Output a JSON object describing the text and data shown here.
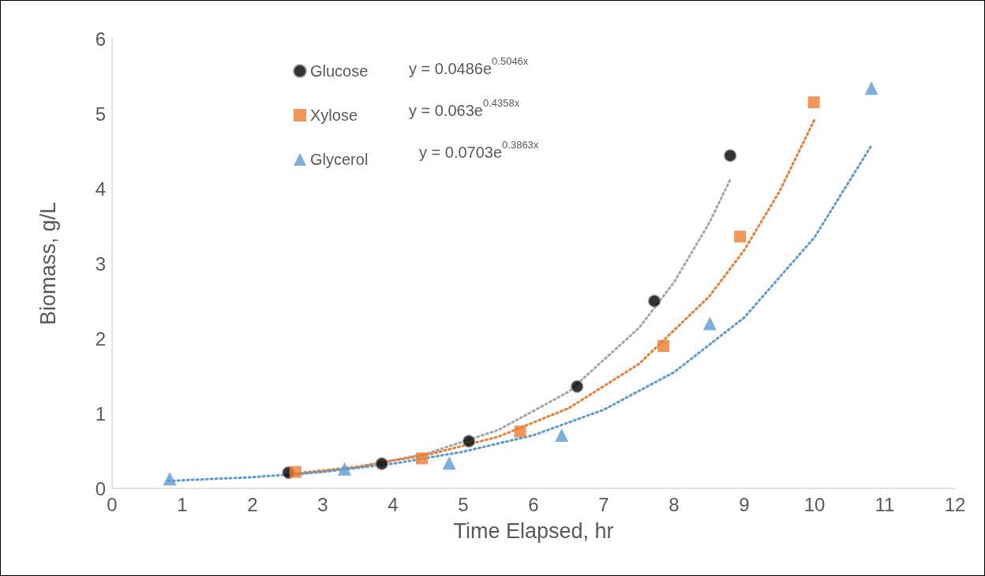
{
  "chart_data": {
    "type": "scatter",
    "xlabel": "Time Elapsed, hr",
    "ylabel": "Biomass, g/L",
    "xlim": [
      0,
      12
    ],
    "xticks": [
      0,
      1,
      2,
      3,
      4,
      5,
      6,
      7,
      8,
      9,
      10,
      11,
      12
    ],
    "ylim": [
      0,
      6
    ],
    "yticks": [
      0,
      1,
      2,
      3,
      4,
      5,
      6
    ],
    "grid": false,
    "legend": "top left",
    "annotations": [
      "y = 0.0486e$^{0.5046x}$",
      "y = 0.063e$^{0.4358x}$",
      "y = 0.0703e$^{0.3863x}$"
    ],
    "series": [
      {
        "name": "Glucose",
        "color": "#000000",
        "marker": "circle",
        "x": [
          2.51,
          3.84,
          5.08,
          6.62,
          7.72,
          8.8
        ],
        "values": [
          0.21,
          0.33,
          0.63,
          1.36,
          2.5,
          4.44
        ]
      },
      {
        "name": "Xylose",
        "color": "#ed7d31",
        "marker": "square",
        "x": [
          2.61,
          4.41,
          5.81,
          7.85,
          8.94,
          9.99
        ],
        "values": [
          0.22,
          0.4,
          0.76,
          1.9,
          3.36,
          5.15
        ]
      },
      {
        "name": "Glycerol",
        "color": "#5b9bd5",
        "marker": "triangle",
        "x": [
          0.82,
          3.31,
          4.8,
          6.4,
          8.51,
          10.81
        ],
        "values": [
          0.13,
          0.26,
          0.34,
          0.71,
          2.2,
          5.34
        ]
      },
      {
        "type": "line",
        "color": "#a5a5a5",
        "marker": "none",
        "line_style": "dotted",
        "x": [
          2.5,
          3.5,
          4.5,
          5.5,
          6.5,
          7.5,
          8.0,
          8.5,
          8.8
        ],
        "values": [
          0.17,
          0.28,
          0.47,
          0.78,
          1.29,
          2.14,
          2.75,
          3.54,
          4.12
        ]
      },
      {
        "type": "line",
        "color": "#ed7d31",
        "marker": "none",
        "line_style": "dotted",
        "x": [
          2.6,
          3.5,
          4.5,
          5.5,
          6.5,
          7.5,
          8.5,
          9.0,
          9.5,
          10.0
        ],
        "values": [
          0.2,
          0.29,
          0.45,
          0.69,
          1.07,
          1.66,
          2.56,
          3.18,
          3.96,
          4.92
        ]
      },
      {
        "type": "line",
        "color": "#5b9bd5",
        "marker": "none",
        "line_style": "dotted",
        "x": [
          0.8,
          2,
          3,
          4,
          5,
          6,
          7,
          8,
          9,
          10,
          10.8
        ],
        "values": [
          0.1,
          0.15,
          0.22,
          0.33,
          0.49,
          0.71,
          1.05,
          1.55,
          2.28,
          3.35,
          4.56
        ]
      }
    ]
  }
}
